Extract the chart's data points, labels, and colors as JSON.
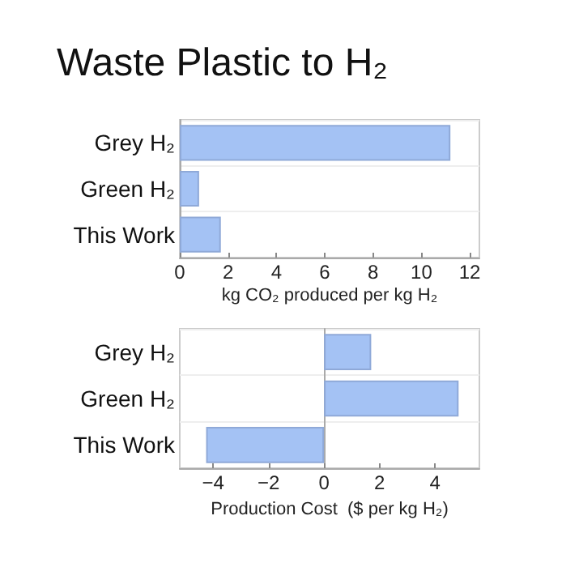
{
  "chart_data": [
    {
      "type": "bar",
      "orientation": "horizontal",
      "title": "Waste Plastic to H₂",
      "categories": [
        "Grey H₂",
        "Green H₂",
        "This Work"
      ],
      "values": [
        11.2,
        0.8,
        1.7
      ],
      "color": "#a4c2f4",
      "xlim": [
        0,
        12.4
      ],
      "xticks": [
        0,
        2,
        4,
        6,
        8,
        10,
        12
      ],
      "xlabel": "kg CO₂ produced per kg H₂",
      "grid": "y"
    },
    {
      "type": "bar",
      "orientation": "horizontal",
      "categories": [
        "Grey H₂",
        "Green H₂",
        "This Work"
      ],
      "values": [
        1.7,
        4.85,
        -4.25
      ],
      "color": "#a4c2f4",
      "xlim": [
        -5.2,
        5.6
      ],
      "xticks": [
        -4,
        -2,
        0,
        2,
        4
      ],
      "xlabel": "Production Cost  ($ per kg H₂)",
      "grid": "y"
    }
  ]
}
